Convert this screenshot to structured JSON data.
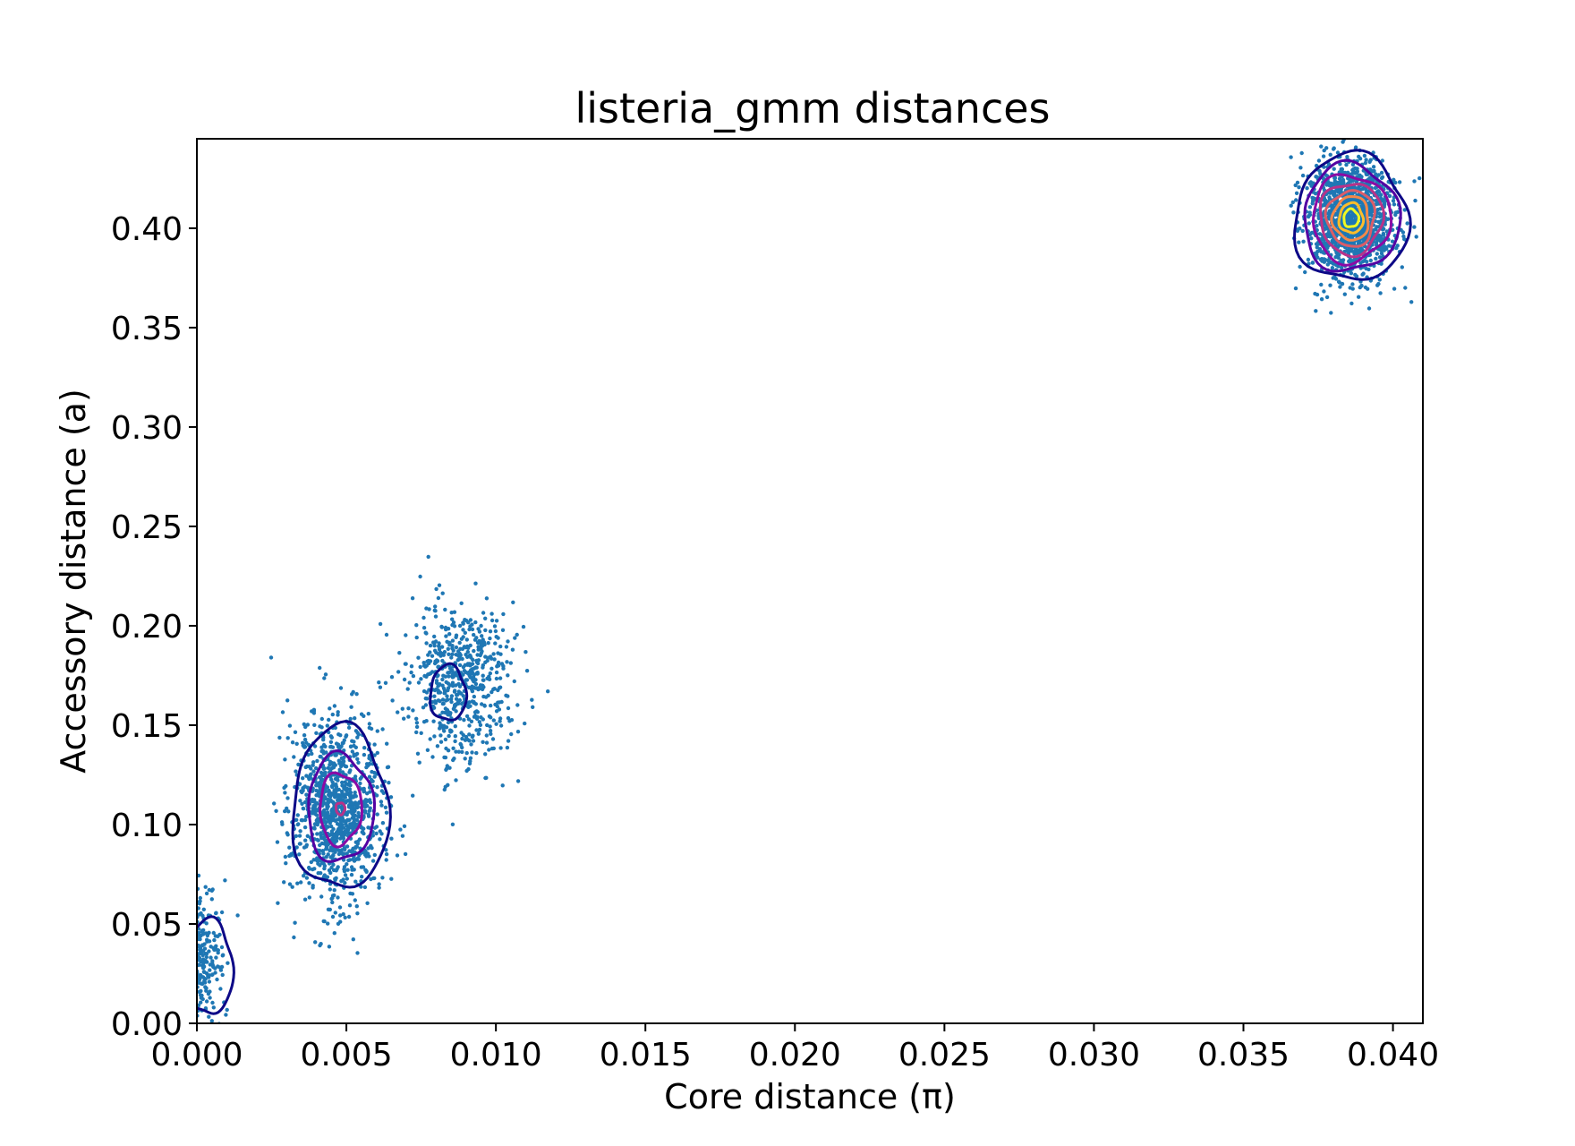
{
  "chart_data": {
    "type": "scatter",
    "title": "listeria_gmm distances",
    "xlabel": "Core distance (π)",
    "ylabel": "Accessory distance (a)",
    "xlim": [
      0.0,
      0.041
    ],
    "ylim": [
      0.0,
      0.445
    ],
    "xticks": [
      "0.000",
      "0.005",
      "0.010",
      "0.015",
      "0.020",
      "0.025",
      "0.030",
      "0.035",
      "0.040"
    ],
    "yticks": [
      "0.00",
      "0.05",
      "0.10",
      "0.15",
      "0.20",
      "0.25",
      "0.30",
      "0.35",
      "0.40"
    ],
    "grid": false,
    "legend": "none",
    "point_color": "#1f77b4",
    "clusters": [
      {
        "center": [
          0.0003,
          0.032
        ],
        "spread": [
          0.0003,
          0.018
        ],
        "count": 190
      },
      {
        "center": [
          0.0047,
          0.108
        ],
        "spread": [
          0.00075,
          0.024
        ],
        "count": 1100
      },
      {
        "center": [
          0.0088,
          0.172
        ],
        "spread": [
          0.0009,
          0.02
        ],
        "count": 620
      },
      {
        "center": [
          0.0386,
          0.405
        ],
        "spread": [
          0.00075,
          0.015
        ],
        "count": 1400
      }
    ],
    "contours": [
      {
        "center": [
          0.0004,
          0.028
        ],
        "radii": [
          [
            0.0008,
            0.024
          ]
        ],
        "colors": [
          "#0d0887"
        ]
      },
      {
        "center": [
          0.0048,
          0.108
        ],
        "radii": [
          [
            0.0016,
            0.041
          ],
          [
            0.0011,
            0.027
          ],
          [
            0.0007,
            0.018
          ],
          [
            0.00015,
            0.003
          ]
        ],
        "colors": [
          "#0d0887",
          "#5302a3",
          "#8b0aa5",
          "#b83289"
        ]
      },
      {
        "center": [
          0.0084,
          0.166
        ],
        "radii": [
          [
            0.0006,
            0.014
          ]
        ],
        "colors": [
          "#0d0887"
        ]
      },
      {
        "center": [
          0.0386,
          0.405
        ],
        "radii": [
          [
            0.0019,
            0.032
          ],
          [
            0.0016,
            0.027
          ],
          [
            0.0013,
            0.022
          ],
          [
            0.00105,
            0.018
          ],
          [
            0.0008,
            0.014
          ],
          [
            0.0006,
            0.011
          ],
          [
            0.0004,
            0.0075
          ],
          [
            0.00025,
            0.0045
          ]
        ],
        "colors": [
          "#0d0887",
          "#5302a3",
          "#8b0aa5",
          "#b83289",
          "#db5c68",
          "#f48849",
          "#febd2a",
          "#f0f921"
        ]
      }
    ]
  }
}
